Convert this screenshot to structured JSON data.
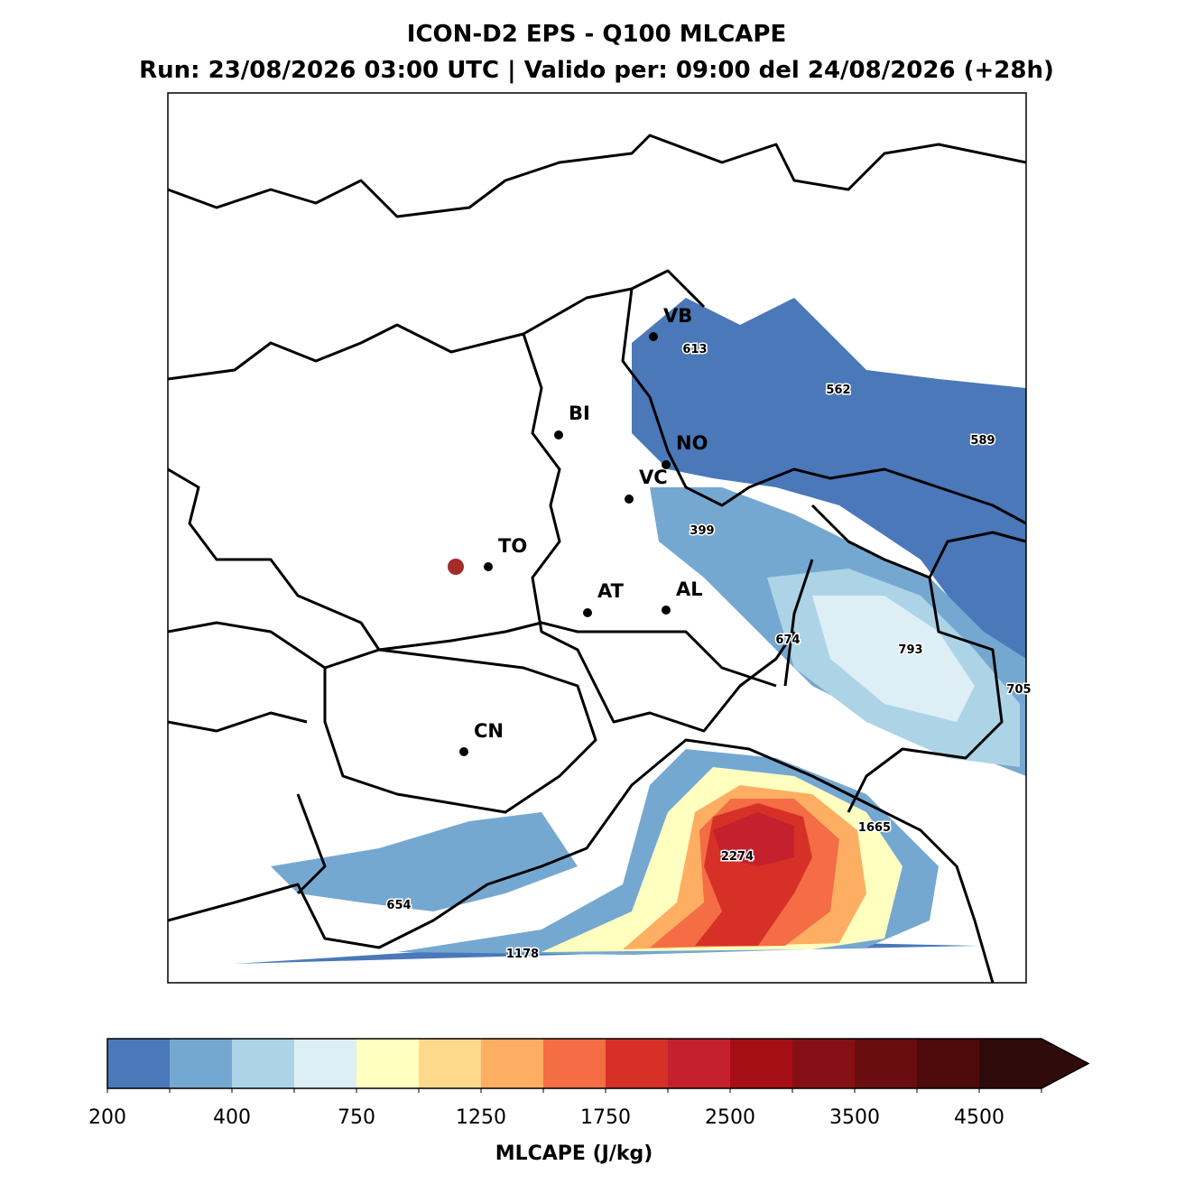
{
  "header": {
    "title": "ICON-D2 EPS - Q100 MLCAPE",
    "subtitle": "Run: 23/08/2026 03:00 UTC | Valido per: 09:00 del 24/08/2026 (+28h)"
  },
  "map": {
    "cities": [
      "VB",
      "BI",
      "NO",
      "VC",
      "TO",
      "AT",
      "AL",
      "CN"
    ],
    "value_labels": [
      613,
      562,
      589,
      399,
      674,
      793,
      705,
      1665,
      2274,
      654,
      1178
    ]
  },
  "colorbar": {
    "label": "MLCAPE (J/kg)",
    "ticks": [
      200,
      400,
      750,
      1250,
      1750,
      2500,
      3500,
      4500
    ],
    "colors": [
      "#4a78b9",
      "#75a8d1",
      "#acd4e6",
      "#ddeef5",
      "#ffffc0",
      "#fed98b",
      "#fdae62",
      "#f46d44",
      "#d73127",
      "#c5202e",
      "#a50f15",
      "#861015",
      "#6a0d10",
      "#4e0a0b",
      "#2f0b0a"
    ]
  }
}
